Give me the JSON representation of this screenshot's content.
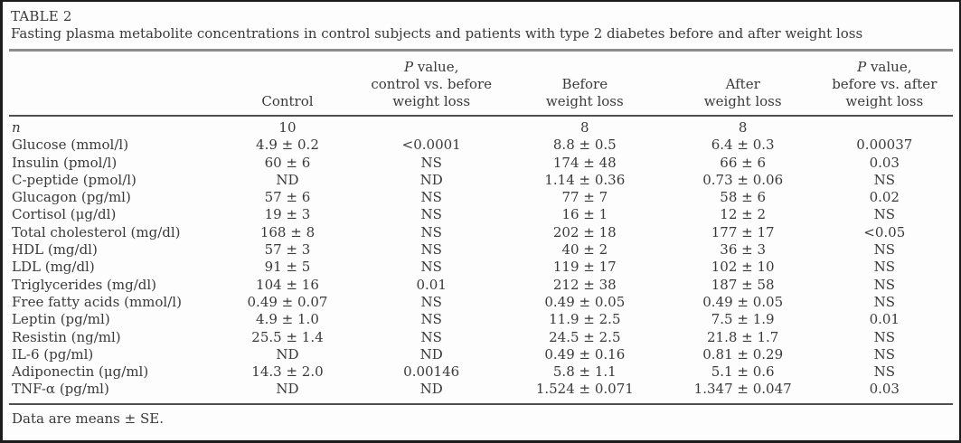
{
  "colors": {
    "bg": "#fdfdfd",
    "text": "#3a3a3a",
    "rule_light": "#8c8c8c",
    "rule_dark": "#4f4f4f",
    "frame": "#1c1c1c"
  },
  "table": {
    "title": "TABLE 2",
    "caption": "Fasting plasma metabolite concentrations in control subjects and patients with type 2 diabetes before and after weight loss",
    "footnote": "Data are means ± SE.",
    "columns": [
      {
        "id": "metabolite",
        "lines": [
          ""
        ]
      },
      {
        "id": "control",
        "lines": [
          "Control"
        ]
      },
      {
        "id": "p-control-vs-before",
        "lines": [
          "*P* value,",
          "control vs. before",
          "weight loss"
        ]
      },
      {
        "id": "before-weight-loss",
        "lines": [
          "Before",
          "weight loss"
        ]
      },
      {
        "id": "after-weight-loss",
        "lines": [
          "After",
          "weight loss"
        ]
      },
      {
        "id": "p-before-vs-after",
        "lines": [
          "*P* value,",
          "before vs. after",
          "weight loss"
        ]
      }
    ],
    "rows": [
      {
        "label": "*n*",
        "values": [
          "10",
          "",
          "8",
          "8",
          ""
        ]
      },
      {
        "label": "Glucose (mmol/l)",
        "values": [
          "4.9 ± 0.2",
          "<0.0001",
          "8.8 ± 0.5",
          "6.4 ± 0.3",
          "0.00037"
        ]
      },
      {
        "label": "Insulin (pmol/l)",
        "values": [
          "60 ± 6",
          "NS",
          "174 ± 48",
          "66 ± 6",
          "0.03"
        ]
      },
      {
        "label": "C-peptide (pmol/l)",
        "values": [
          "ND",
          "ND",
          "1.14 ± 0.36",
          "0.73 ± 0.06",
          "NS"
        ]
      },
      {
        "label": "Glucagon (pg/ml)",
        "values": [
          "57 ± 6",
          "NS",
          "77 ± 7",
          "58 ± 6",
          "0.02"
        ]
      },
      {
        "label": "Cortisol (μg/dl)",
        "values": [
          "19 ± 3",
          "NS",
          "16 ± 1",
          "12 ± 2",
          "NS"
        ]
      },
      {
        "label": "Total cholesterol (mg/dl)",
        "values": [
          "168 ± 8",
          "NS",
          "202 ± 18",
          "177 ± 17",
          "<0.05"
        ]
      },
      {
        "label": "HDL (mg/dl)",
        "values": [
          "57 ± 3",
          "NS",
          "40 ± 2",
          "36 ± 3",
          "NS"
        ]
      },
      {
        "label": "LDL (mg/dl)",
        "values": [
          "91 ± 5",
          "NS",
          "119 ± 17",
          "102 ± 10",
          "NS"
        ]
      },
      {
        "label": "Triglycerides (mg/dl)",
        "values": [
          "104 ± 16",
          "0.01",
          "212 ± 38",
          "187 ± 58",
          "NS"
        ]
      },
      {
        "label": "Free fatty acids (mmol/l)",
        "values": [
          "0.49 ± 0.07",
          "NS",
          "0.49 ± 0.05",
          "0.49 ± 0.05",
          "NS"
        ]
      },
      {
        "label": "Leptin (pg/ml)",
        "values": [
          "4.9 ± 1.0",
          "NS",
          "11.9 ± 2.5",
          "7.5 ± 1.9",
          "0.01"
        ]
      },
      {
        "label": "Resistin (ng/ml)",
        "values": [
          "25.5 ± 1.4",
          "NS",
          "24.5 ± 2.5",
          "21.8 ± 1.7",
          "NS"
        ]
      },
      {
        "label": "IL-6 (pg/ml)",
        "values": [
          "ND",
          "ND",
          "0.49 ± 0.16",
          "0.81 ± 0.29",
          "NS"
        ]
      },
      {
        "label": "Adiponectin (μg/ml)",
        "values": [
          "14.3 ± 2.0",
          "0.00146",
          "5.8 ± 1.1",
          "5.1 ± 0.6",
          "NS"
        ]
      },
      {
        "label": "TNF-α (pg/ml)",
        "values": [
          "ND",
          "ND",
          "1.524 ± 0.071",
          "1.347 ± 0.047",
          "0.03"
        ]
      }
    ]
  }
}
